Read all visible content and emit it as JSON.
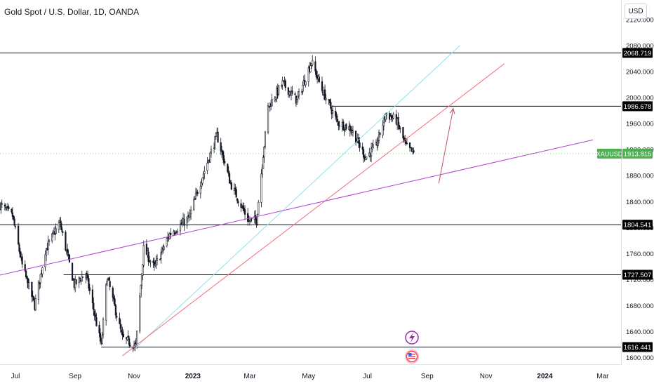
{
  "header": {
    "title": "Gold Spot / U.S. Dollar, 1D, OANDA",
    "currency_button": "USD"
  },
  "colors": {
    "up_down_candle": "#131722",
    "cyan_line": "#8fe0f0",
    "red_line": "#f26d7d",
    "purple_line": "#b040d0",
    "arrow": "#c0506a",
    "price_tag_bg": "#4caf50",
    "level_tag_bg": "#000000"
  },
  "chart_data": {
    "type": "candlestick",
    "symbol": "XAUUSD",
    "ylim": [
      1590,
      2150
    ],
    "y_ticks": [
      1600,
      1640,
      1680,
      1720,
      1760,
      1800,
      1840,
      1880,
      1920,
      1960,
      2000,
      2040,
      2080,
      2120
    ],
    "y_tick_labels": [
      "1600.000",
      "1640.000",
      "1680.000",
      "1720.000",
      "1760.000",
      "1800.000",
      "1840.000",
      "1880.000",
      "1920.000",
      "1960.000",
      "2000.000",
      "2040.000",
      "2080.000",
      "2120.000"
    ],
    "x_range": [
      "2022-06-15",
      "2024-03-20"
    ],
    "x_ticks": [
      {
        "date": "2022-07-01",
        "label": "Jul",
        "bold": false
      },
      {
        "date": "2022-09-01",
        "label": "Sep",
        "bold": false
      },
      {
        "date": "2022-11-01",
        "label": "Nov",
        "bold": false
      },
      {
        "date": "2023-01-01",
        "label": "2023",
        "bold": true
      },
      {
        "date": "2023-03-01",
        "label": "Mar",
        "bold": false
      },
      {
        "date": "2023-05-01",
        "label": "May",
        "bold": false
      },
      {
        "date": "2023-07-01",
        "label": "Jul",
        "bold": false
      },
      {
        "date": "2023-09-01",
        "label": "Sep",
        "bold": false
      },
      {
        "date": "2023-11-01",
        "label": "Nov",
        "bold": false
      },
      {
        "date": "2024-01-01",
        "label": "2024",
        "bold": true
      },
      {
        "date": "2024-03-01",
        "label": "Mar",
        "bold": false
      }
    ],
    "price_anchors": [
      [
        "2022-06-15",
        1835
      ],
      [
        "2022-06-28",
        1818
      ],
      [
        "2022-07-08",
        1742
      ],
      [
        "2022-07-21",
        1680
      ],
      [
        "2022-08-01",
        1765
      ],
      [
        "2022-08-16",
        1808
      ],
      [
        "2022-08-31",
        1712
      ],
      [
        "2022-09-12",
        1730
      ],
      [
        "2022-09-28",
        1618
      ],
      [
        "2022-10-04",
        1725
      ],
      [
        "2022-10-20",
        1630
      ],
      [
        "2022-11-03",
        1618
      ],
      [
        "2022-11-11",
        1768
      ],
      [
        "2022-11-22",
        1738
      ],
      [
        "2022-12-08",
        1790
      ],
      [
        "2022-12-28",
        1815
      ],
      [
        "2023-01-10",
        1875
      ],
      [
        "2023-01-26",
        1942
      ],
      [
        "2023-02-09",
        1868
      ],
      [
        "2023-02-28",
        1810
      ],
      [
        "2023-03-08",
        1812
      ],
      [
        "2023-03-20",
        1985
      ],
      [
        "2023-04-04",
        2022
      ],
      [
        "2023-04-19",
        1995
      ],
      [
        "2023-05-04",
        2055
      ],
      [
        "2023-05-15",
        2012
      ],
      [
        "2023-05-31",
        1962
      ],
      [
        "2023-06-14",
        1952
      ],
      [
        "2023-06-29",
        1908
      ],
      [
        "2023-07-10",
        1925
      ],
      [
        "2023-07-20",
        1975
      ],
      [
        "2023-07-31",
        1965
      ],
      [
        "2023-08-10",
        1925
      ],
      [
        "2023-08-18",
        1913.8
      ]
    ],
    "horizontal_levels": [
      {
        "price": 2068.719,
        "label": "2068.719",
        "from": "2022-06-15"
      },
      {
        "price": 1986.678,
        "label": "1986.678",
        "from": "2023-05-25"
      },
      {
        "price": 1804.541,
        "label": "1804.541",
        "from": "2022-06-15"
      },
      {
        "price": 1727.507,
        "label": "1727.507",
        "from": "2022-08-20"
      },
      {
        "price": 1616.441,
        "label": "1616.441",
        "from": "2022-09-28"
      }
    ],
    "trendlines": [
      {
        "name": "cyan",
        "from": [
          "2022-11-03",
          1616
        ],
        "to": [
          "2023-10-05",
          2080
        ]
      },
      {
        "name": "red",
        "from": [
          "2022-10-20",
          1603
        ],
        "to": [
          "2023-11-20",
          2052
        ]
      },
      {
        "name": "purple",
        "from": [
          "2022-06-15",
          1727
        ],
        "to": [
          "2024-02-20",
          1935
        ]
      }
    ],
    "arrow": {
      "from": [
        "2023-09-13",
        1868
      ],
      "to": [
        "2023-09-28",
        1983
      ]
    },
    "last_price": {
      "symbol": "XAUUSD",
      "value": "1913.815",
      "price": 1913.815
    }
  }
}
